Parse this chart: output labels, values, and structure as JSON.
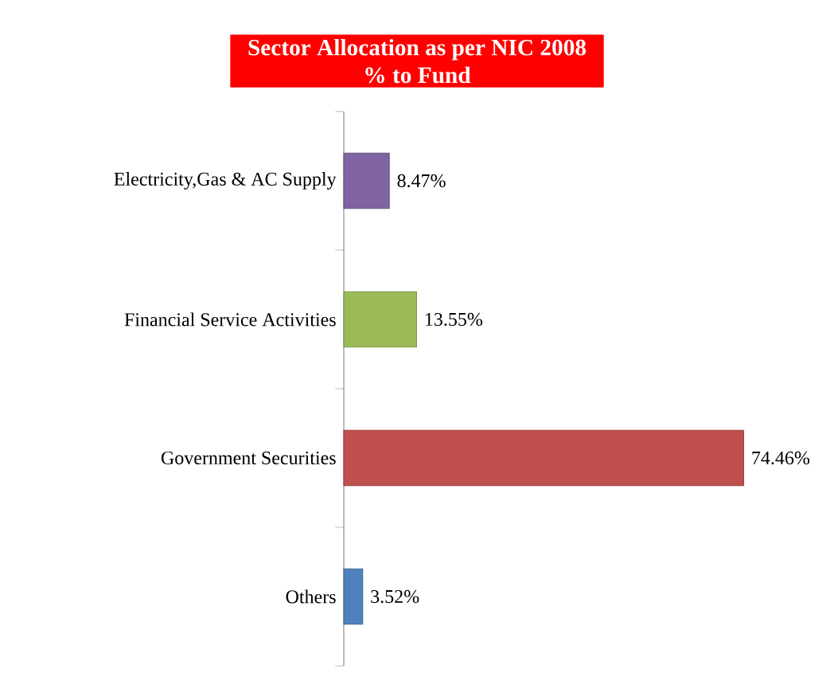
{
  "chart_data": {
    "type": "bar",
    "orientation": "horizontal",
    "title": "Sector Allocation as per NIC 2008",
    "subtitle": "% to Fund",
    "categories": [
      "Electricity,Gas & AC Supply",
      "Financial Service Activities",
      "Government Securities",
      "Others"
    ],
    "values": [
      8.47,
      13.55,
      74.46,
      3.52
    ],
    "colors": [
      "#8064a2",
      "#9bbb59",
      "#c0504d",
      "#4f81bd"
    ],
    "value_labels": [
      "8.47%",
      "13.55%",
      "74.46%",
      "3.52%"
    ]
  }
}
